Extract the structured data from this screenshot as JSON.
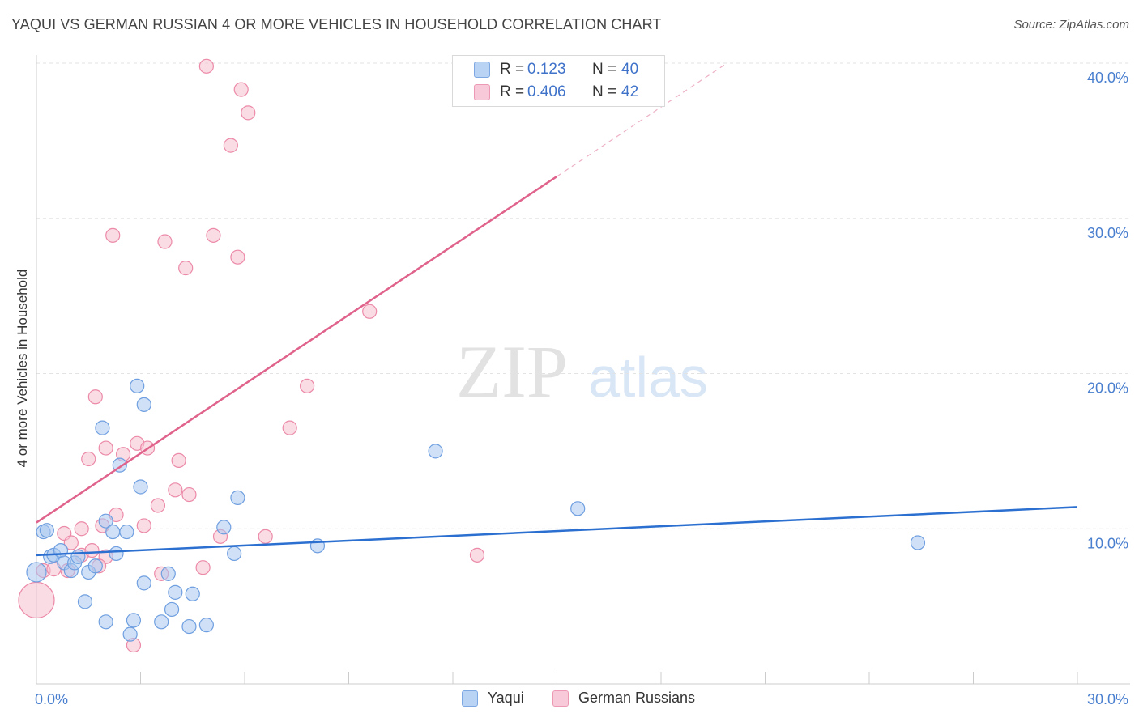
{
  "title": "YAQUI VS GERMAN RUSSIAN 4 OR MORE VEHICLES IN HOUSEHOLD CORRELATION CHART",
  "source": "Source: ZipAtlas.com",
  "watermark": {
    "zip": "ZIP",
    "atlas": "atlas"
  },
  "colors": {
    "blue_fill": "#a9c8f0",
    "blue_stroke": "#6f9fe0",
    "blue_line": "#2b6fd0",
    "pink_fill": "#f6bfd0",
    "pink_stroke": "#ec8aa8",
    "pink_line": "#e0638c",
    "grid": "#e3e3e3",
    "tick_text": "#4a7fcf"
  },
  "legend": {
    "rows": [
      {
        "r_label": "R =",
        "r_value": "0.123",
        "n_label": "N =",
        "n_value": "40"
      },
      {
        "r_label": "R =",
        "r_value": "0.406",
        "n_label": "N =",
        "n_value": "42"
      }
    ]
  },
  "bottom_legend": [
    "Yaqui",
    "German Russians"
  ],
  "chart_data": {
    "type": "scatter",
    "title": "YAQUI VS GERMAN RUSSIAN 4 OR MORE VEHICLES IN HOUSEHOLD CORRELATION CHART",
    "xlabel": "",
    "ylabel": "4 or more Vehicles in Household",
    "xlim": [
      0,
      30
    ],
    "ylim": [
      0,
      40
    ],
    "x_tick_labels": [
      "0.0%",
      "30.0%"
    ],
    "y_ticks": [
      10,
      20,
      30,
      40
    ],
    "y_tick_labels": [
      "10.0%",
      "20.0%",
      "30.0%",
      "40.0%"
    ],
    "grid": true,
    "series": [
      {
        "name": "Yaqui",
        "r": 0.123,
        "n": 40,
        "trend": {
          "x0": 0,
          "y0": 8.3,
          "x1": 30,
          "y1": 11.4
        },
        "points": [
          [
            0.0,
            7.2
          ],
          [
            0.2,
            9.8
          ],
          [
            0.3,
            9.9
          ],
          [
            0.4,
            8.2
          ],
          [
            0.5,
            8.3
          ],
          [
            0.7,
            8.6
          ],
          [
            0.8,
            7.8
          ],
          [
            1.0,
            7.3
          ],
          [
            1.1,
            7.8
          ],
          [
            1.2,
            8.2
          ],
          [
            1.4,
            5.3
          ],
          [
            1.5,
            7.2
          ],
          [
            1.7,
            7.6
          ],
          [
            1.9,
            16.5
          ],
          [
            2.0,
            4.0
          ],
          [
            2.0,
            10.5
          ],
          [
            2.2,
            9.8
          ],
          [
            2.3,
            8.4
          ],
          [
            2.4,
            14.1
          ],
          [
            2.6,
            9.8
          ],
          [
            2.7,
            3.2
          ],
          [
            2.8,
            4.1
          ],
          [
            2.9,
            19.2
          ],
          [
            3.0,
            12.7
          ],
          [
            3.1,
            18.0
          ],
          [
            3.1,
            6.5
          ],
          [
            3.6,
            4.0
          ],
          [
            3.8,
            7.1
          ],
          [
            3.9,
            4.8
          ],
          [
            4.0,
            5.9
          ],
          [
            4.4,
            3.7
          ],
          [
            4.5,
            5.8
          ],
          [
            4.9,
            3.8
          ],
          [
            5.4,
            10.1
          ],
          [
            5.7,
            8.4
          ],
          [
            5.8,
            12.0
          ],
          [
            8.1,
            8.9
          ],
          [
            11.5,
            15.0
          ],
          [
            15.6,
            11.3
          ],
          [
            25.4,
            9.1
          ]
        ]
      },
      {
        "name": "German Russians",
        "r": 0.406,
        "n": 42,
        "trend": {
          "x0": 0,
          "y0": 10.4,
          "x1": 15,
          "y1": 32.7,
          "dash_x1": 19.9,
          "dash_y1": 40.0
        },
        "points": [
          [
            0.0,
            5.4
          ],
          [
            0.2,
            7.3
          ],
          [
            0.5,
            7.4
          ],
          [
            0.8,
            9.7
          ],
          [
            1.0,
            9.1
          ],
          [
            1.3,
            10.0
          ],
          [
            1.3,
            8.3
          ],
          [
            1.5,
            14.5
          ],
          [
            1.6,
            8.6
          ],
          [
            1.7,
            18.5
          ],
          [
            1.9,
            10.2
          ],
          [
            2.0,
            8.2
          ],
          [
            2.0,
            15.2
          ],
          [
            2.2,
            28.9
          ],
          [
            2.3,
            10.9
          ],
          [
            2.5,
            14.8
          ],
          [
            2.8,
            2.5
          ],
          [
            2.9,
            15.5
          ],
          [
            3.1,
            10.2
          ],
          [
            3.2,
            15.2
          ],
          [
            3.5,
            11.5
          ],
          [
            3.6,
            7.1
          ],
          [
            3.7,
            28.5
          ],
          [
            4.0,
            12.5
          ],
          [
            4.1,
            14.4
          ],
          [
            4.3,
            26.8
          ],
          [
            4.4,
            12.2
          ],
          [
            4.8,
            7.5
          ],
          [
            4.9,
            39.8
          ],
          [
            5.1,
            28.9
          ],
          [
            5.3,
            9.5
          ],
          [
            5.6,
            34.7
          ],
          [
            5.8,
            27.5
          ],
          [
            5.9,
            38.3
          ],
          [
            6.1,
            36.8
          ],
          [
            6.6,
            9.5
          ],
          [
            7.3,
            16.5
          ],
          [
            7.8,
            19.2
          ],
          [
            9.6,
            24.0
          ],
          [
            12.7,
            8.3
          ],
          [
            0.9,
            7.3
          ],
          [
            1.8,
            7.6
          ]
        ]
      }
    ]
  }
}
